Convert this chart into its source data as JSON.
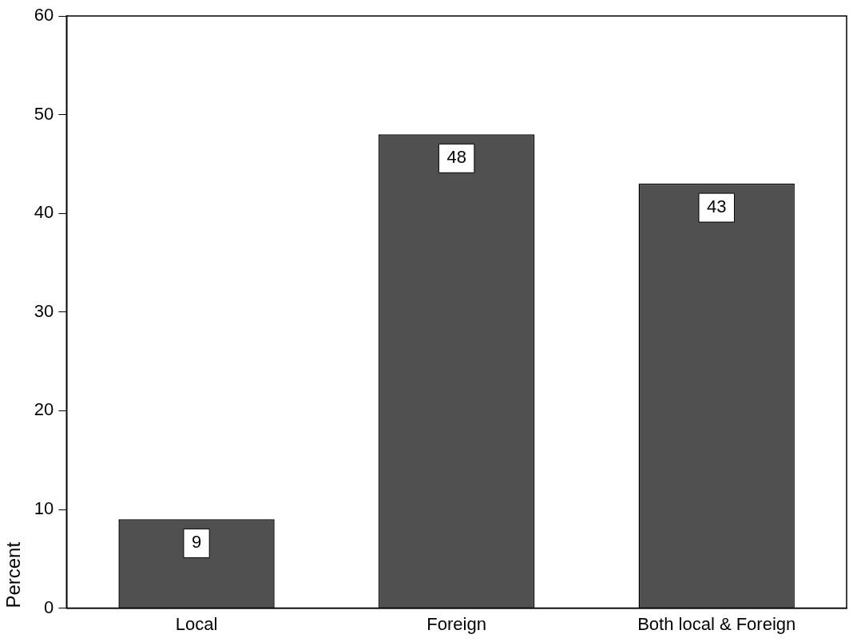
{
  "chart_data": {
    "type": "bar",
    "ylabel": "Percent",
    "categories": [
      "Local",
      "Foreign",
      "Both local & Foreign"
    ],
    "values": [
      9,
      48,
      43
    ],
    "color": "#505050",
    "ylim": [
      0,
      60
    ],
    "yticks": [
      0,
      10,
      20,
      30,
      40,
      50,
      60
    ],
    "grid": false,
    "legend": false,
    "data_labels": true
  }
}
